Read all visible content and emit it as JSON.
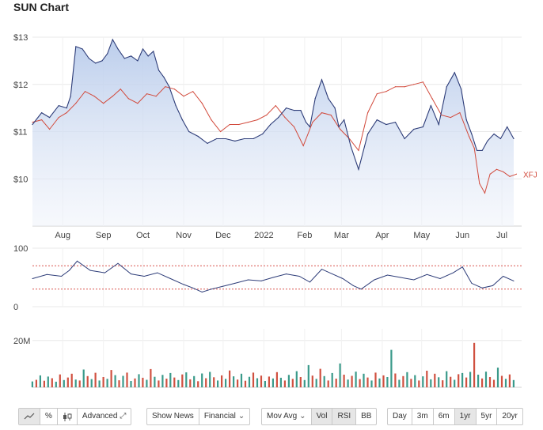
{
  "title": "SUN Chart",
  "colors": {
    "sun_line": "#2d3c78",
    "sun_fill_top": "#b8cbeb",
    "xfj_line": "#d24a3c",
    "vol_up": "#3a9a8a",
    "vol_down": "#d05040",
    "rsi_band": "#d9534f",
    "grid": "#e8e8e8",
    "axis_text": "#444444"
  },
  "chart_data": [
    {
      "type": "area",
      "name": "price",
      "xlim": [
        "2021-07-09",
        "2022-07-16"
      ],
      "ylim": [
        9.0,
        13.0
      ],
      "yticks": [
        {
          "v": 13,
          "label": "$13"
        },
        {
          "v": 12,
          "label": "$12"
        },
        {
          "v": 11,
          "label": "$11"
        },
        {
          "v": 10,
          "label": "$10"
        }
      ],
      "xticks": [
        {
          "date": "2021-08-01",
          "label": "Aug"
        },
        {
          "date": "2021-09-01",
          "label": "Sep"
        },
        {
          "date": "2021-10-01",
          "label": "Oct"
        },
        {
          "date": "2021-11-01",
          "label": "Nov"
        },
        {
          "date": "2021-12-01",
          "label": "Dec"
        },
        {
          "date": "2022-01-01",
          "label": "2022"
        },
        {
          "date": "2022-02-01",
          "label": "Feb"
        },
        {
          "date": "2022-03-01",
          "label": "Mar"
        },
        {
          "date": "2022-04-01",
          "label": "Apr"
        },
        {
          "date": "2022-05-01",
          "label": "May"
        },
        {
          "date": "2022-06-01",
          "label": "Jun"
        },
        {
          "date": "2022-07-01",
          "label": "Jul"
        }
      ],
      "series": [
        {
          "name": "",
          "x": [
            "2021-07-09",
            "2021-07-16",
            "2021-07-22",
            "2021-07-29",
            "2021-08-04",
            "2021-08-07",
            "2021-08-11",
            "2021-08-16",
            "2021-08-21",
            "2021-08-26",
            "2021-08-31",
            "2021-09-04",
            "2021-09-08",
            "2021-09-12",
            "2021-09-17",
            "2021-09-22",
            "2021-09-27",
            "2021-10-01",
            "2021-10-05",
            "2021-10-09",
            "2021-10-13",
            "2021-10-17",
            "2021-10-21",
            "2021-10-26",
            "2021-10-31",
            "2021-11-05",
            "2021-11-12",
            "2021-11-19",
            "2021-11-26",
            "2021-12-03",
            "2021-12-10",
            "2021-12-17",
            "2021-12-24",
            "2021-12-31",
            "2022-01-06",
            "2022-01-12",
            "2022-01-18",
            "2022-01-24",
            "2022-01-29",
            "2022-02-02",
            "2022-02-05",
            "2022-02-09",
            "2022-02-14",
            "2022-02-19",
            "2022-02-24",
            "2022-02-27",
            "2022-03-03",
            "2022-03-08",
            "2022-03-14",
            "2022-03-21",
            "2022-03-28",
            "2022-04-04",
            "2022-04-11",
            "2022-04-18",
            "2022-04-25",
            "2022-05-02",
            "2022-05-08",
            "2022-05-14",
            "2022-05-20",
            "2022-05-26",
            "2022-05-31",
            "2022-06-04",
            "2022-06-08",
            "2022-06-12",
            "2022-06-16",
            "2022-06-20",
            "2022-06-25",
            "2022-06-30",
            "2022-07-05",
            "2022-07-10"
          ],
          "values": [
            11.15,
            11.4,
            11.3,
            11.55,
            11.5,
            11.75,
            12.8,
            12.75,
            12.55,
            12.45,
            12.5,
            12.65,
            12.95,
            12.75,
            12.55,
            12.6,
            12.5,
            12.75,
            12.6,
            12.7,
            12.3,
            12.15,
            11.95,
            11.55,
            11.25,
            11.0,
            10.9,
            10.75,
            10.85,
            10.85,
            10.8,
            10.85,
            10.85,
            10.95,
            11.15,
            11.3,
            11.5,
            11.45,
            11.45,
            11.2,
            11.1,
            11.7,
            12.1,
            11.7,
            11.5,
            11.1,
            11.25,
            10.7,
            10.2,
            10.95,
            11.25,
            11.15,
            11.2,
            10.85,
            11.05,
            11.1,
            11.55,
            11.15,
            11.95,
            12.25,
            11.9,
            11.25,
            10.95,
            10.6,
            10.6,
            10.8,
            10.95,
            10.85,
            11.1,
            10.85
          ]
        },
        {
          "name": "XFJ",
          "x": [
            "2021-07-09",
            "2021-07-16",
            "2021-07-22",
            "2021-07-29",
            "2021-08-04",
            "2021-08-11",
            "2021-08-18",
            "2021-08-25",
            "2021-09-01",
            "2021-09-08",
            "2021-09-14",
            "2021-09-20",
            "2021-09-27",
            "2021-10-04",
            "2021-10-11",
            "2021-10-18",
            "2021-10-25",
            "2021-11-01",
            "2021-11-08",
            "2021-11-15",
            "2021-11-22",
            "2021-11-29",
            "2021-12-06",
            "2021-12-13",
            "2021-12-20",
            "2021-12-27",
            "2022-01-03",
            "2022-01-10",
            "2022-01-17",
            "2022-01-24",
            "2022-01-31",
            "2022-02-07",
            "2022-02-14",
            "2022-02-21",
            "2022-02-28",
            "2022-03-07",
            "2022-03-14",
            "2022-03-21",
            "2022-03-28",
            "2022-04-04",
            "2022-04-11",
            "2022-04-18",
            "2022-04-25",
            "2022-05-02",
            "2022-05-09",
            "2022-05-16",
            "2022-05-23",
            "2022-05-30",
            "2022-06-06",
            "2022-06-10",
            "2022-06-14",
            "2022-06-18",
            "2022-06-22",
            "2022-06-27",
            "2022-07-02",
            "2022-07-07",
            "2022-07-12"
          ],
          "values": [
            11.2,
            11.25,
            11.05,
            11.3,
            11.4,
            11.6,
            11.85,
            11.75,
            11.6,
            11.75,
            11.9,
            11.7,
            11.6,
            11.8,
            11.75,
            11.95,
            11.9,
            11.75,
            11.85,
            11.6,
            11.25,
            11.0,
            11.15,
            11.15,
            11.2,
            11.25,
            11.35,
            11.55,
            11.3,
            11.1,
            10.7,
            11.2,
            11.4,
            11.35,
            11.05,
            10.85,
            10.6,
            11.4,
            11.8,
            11.85,
            11.95,
            11.95,
            12.0,
            12.05,
            11.7,
            11.35,
            11.3,
            11.4,
            10.9,
            10.65,
            9.9,
            9.7,
            10.1,
            10.2,
            10.15,
            10.05,
            10.1
          ]
        }
      ]
    },
    {
      "type": "line",
      "name": "rsi",
      "ylim": [
        0,
        100
      ],
      "yticks": [
        {
          "v": 100,
          "label": "100"
        },
        {
          "v": 0,
          "label": "0"
        }
      ],
      "bands": [
        70,
        30
      ],
      "series": [
        {
          "name": "",
          "x": [
            "2021-07-09",
            "2021-07-20",
            "2021-07-31",
            "2021-08-06",
            "2021-08-12",
            "2021-08-22",
            "2021-09-02",
            "2021-09-12",
            "2021-09-22",
            "2021-10-02",
            "2021-10-12",
            "2021-10-22",
            "2021-11-01",
            "2021-11-08",
            "2021-11-15",
            "2021-11-22",
            "2021-12-01",
            "2021-12-10",
            "2021-12-20",
            "2021-12-30",
            "2022-01-08",
            "2022-01-18",
            "2022-01-28",
            "2022-02-05",
            "2022-02-14",
            "2022-02-22",
            "2022-03-02",
            "2022-03-10",
            "2022-03-16",
            "2022-03-26",
            "2022-04-05",
            "2022-04-15",
            "2022-04-25",
            "2022-05-05",
            "2022-05-15",
            "2022-05-25",
            "2022-06-01",
            "2022-06-08",
            "2022-06-16",
            "2022-06-24",
            "2022-07-02",
            "2022-07-10"
          ],
          "values": [
            48,
            55,
            52,
            62,
            78,
            62,
            58,
            74,
            56,
            52,
            58,
            48,
            38,
            32,
            25,
            30,
            35,
            40,
            46,
            44,
            50,
            56,
            52,
            42,
            64,
            56,
            48,
            36,
            30,
            46,
            54,
            50,
            46,
            55,
            48,
            58,
            68,
            40,
            32,
            36,
            52,
            44
          ]
        }
      ]
    },
    {
      "type": "bar",
      "name": "volume",
      "ylim": [
        0,
        25
      ],
      "yticks": [
        {
          "v": 20,
          "label": "20M"
        }
      ],
      "series": [
        {
          "name": "",
          "x": [
            "2021-07-09",
            "2021-07-12",
            "2021-07-15",
            "2021-07-18",
            "2021-07-21",
            "2021-07-24",
            "2021-07-27",
            "2021-07-30",
            "2021-08-02",
            "2021-08-05",
            "2021-08-08",
            "2021-08-11",
            "2021-08-14",
            "2021-08-17",
            "2021-08-20",
            "2021-08-23",
            "2021-08-26",
            "2021-08-29",
            "2021-09-01",
            "2021-09-04",
            "2021-09-07",
            "2021-09-10",
            "2021-09-13",
            "2021-09-16",
            "2021-09-19",
            "2021-09-22",
            "2021-09-25",
            "2021-09-28",
            "2021-10-01",
            "2021-10-04",
            "2021-10-07",
            "2021-10-10",
            "2021-10-13",
            "2021-10-16",
            "2021-10-19",
            "2021-10-22",
            "2021-10-25",
            "2021-10-28",
            "2021-10-31",
            "2021-11-03",
            "2021-11-06",
            "2021-11-09",
            "2021-11-12",
            "2021-11-15",
            "2021-11-18",
            "2021-11-21",
            "2021-11-24",
            "2021-11-27",
            "2021-11-30",
            "2021-12-03",
            "2021-12-06",
            "2021-12-09",
            "2021-12-12",
            "2021-12-15",
            "2021-12-18",
            "2021-12-21",
            "2021-12-24",
            "2021-12-27",
            "2021-12-30",
            "2022-01-02",
            "2022-01-05",
            "2022-01-08",
            "2022-01-11",
            "2022-01-14",
            "2022-01-17",
            "2022-01-20",
            "2022-01-23",
            "2022-01-26",
            "2022-01-29",
            "2022-02-01",
            "2022-02-04",
            "2022-02-07",
            "2022-02-10",
            "2022-02-13",
            "2022-02-16",
            "2022-02-19",
            "2022-02-22",
            "2022-02-25",
            "2022-02-28",
            "2022-03-03",
            "2022-03-06",
            "2022-03-09",
            "2022-03-12",
            "2022-03-15",
            "2022-03-18",
            "2022-03-21",
            "2022-03-24",
            "2022-03-27",
            "2022-03-30",
            "2022-04-02",
            "2022-04-05",
            "2022-04-08",
            "2022-04-11",
            "2022-04-14",
            "2022-04-17",
            "2022-04-20",
            "2022-04-23",
            "2022-04-26",
            "2022-04-29",
            "2022-05-02",
            "2022-05-05",
            "2022-05-08",
            "2022-05-11",
            "2022-05-14",
            "2022-05-17",
            "2022-05-20",
            "2022-05-23",
            "2022-05-26",
            "2022-05-29",
            "2022-06-01",
            "2022-06-04",
            "2022-06-07",
            "2022-06-10",
            "2022-06-13",
            "2022-06-16",
            "2022-06-19",
            "2022-06-22",
            "2022-06-25",
            "2022-06-28",
            "2022-07-01",
            "2022-07-04",
            "2022-07-07",
            "2022-07-10"
          ],
          "values": [
            2.5,
            3.2,
            5.1,
            2.8,
            4.6,
            3.9,
            2.4,
            5.5,
            3.1,
            4.2,
            5.8,
            3.3,
            2.9,
            7.6,
            4.8,
            3.5,
            6.2,
            2.9,
            4.4,
            3.6,
            7.4,
            5.2,
            3.0,
            4.9,
            6.3,
            2.7,
            3.8,
            5.6,
            4.1,
            3.2,
            7.8,
            4.5,
            2.9,
            5.3,
            3.7,
            6.1,
            4.2,
            3.1,
            5.5,
            6.4,
            3.4,
            4.8,
            2.6,
            5.9,
            3.9,
            6.6,
            4.3,
            2.9,
            5.1,
            3.6,
            7.2,
            4.7,
            3.3,
            5.8,
            2.8,
            4.5,
            6.3,
            3.9,
            5.0,
            2.7,
            4.6,
            3.8,
            6.5,
            4.1,
            2.9,
            5.3,
            3.6,
            6.9,
            4.4,
            3.1,
            9.5,
            5.0,
            3.6,
            7.9,
            4.8,
            2.9,
            6.1,
            3.7,
            10.2,
            5.4,
            3.3,
            4.9,
            6.7,
            3.5,
            5.8,
            4.2,
            2.9,
            6.3,
            3.8,
            5.1,
            4.4,
            16.0,
            5.9,
            3.2,
            4.8,
            6.5,
            3.6,
            5.2,
            2.9,
            4.7,
            7.1,
            3.4,
            5.8,
            4.3,
            3.0,
            6.9,
            4.5,
            3.2,
            5.6,
            6.1,
            4.2,
            6.6,
            19.0,
            5.4,
            3.8,
            6.7,
            4.4,
            3.2,
            8.4,
            4.9,
            3.6,
            5.5,
            3.1
          ],
          "direction": [
            "up",
            "down",
            "up",
            "down",
            "up",
            "down",
            "up",
            "down",
            "up",
            "down",
            "down",
            "up",
            "down",
            "up",
            "down",
            "up",
            "down",
            "up",
            "down",
            "up",
            "down",
            "up",
            "down",
            "up",
            "down",
            "up",
            "down",
            "up",
            "down",
            "up",
            "down",
            "up",
            "down",
            "up",
            "down",
            "up",
            "down",
            "up",
            "down",
            "up",
            "down",
            "up",
            "down",
            "up",
            "down",
            "up",
            "down",
            "up",
            "down",
            "up",
            "down",
            "up",
            "down",
            "up",
            "down",
            "up",
            "down",
            "up",
            "down",
            "up",
            "down",
            "up",
            "down",
            "up",
            "down",
            "up",
            "down",
            "up",
            "down",
            "up",
            "up",
            "down",
            "up",
            "down",
            "up",
            "down",
            "up",
            "down",
            "up",
            "down",
            "up",
            "down",
            "up",
            "down",
            "up",
            "down",
            "up",
            "down",
            "up",
            "down",
            "up",
            "up",
            "down",
            "up",
            "down",
            "up",
            "down",
            "up",
            "down",
            "up",
            "down",
            "up",
            "down",
            "up",
            "down",
            "up",
            "down",
            "up",
            "down",
            "up",
            "down",
            "up",
            "down",
            "up",
            "down",
            "up",
            "down",
            "down",
            "up",
            "down",
            "up",
            "down",
            "up"
          ]
        }
      ]
    }
  ],
  "controls": {
    "pct": "%",
    "advanced": "Advanced",
    "show_news": "Show News",
    "financial": "Financial",
    "mov_avg": "Mov Avg",
    "vol": "Vol",
    "rsi": "RSI",
    "bb": "BB",
    "ranges": [
      "Day",
      "3m",
      "6m",
      "1yr",
      "5yr",
      "20yr"
    ],
    "active_range": "1yr"
  }
}
